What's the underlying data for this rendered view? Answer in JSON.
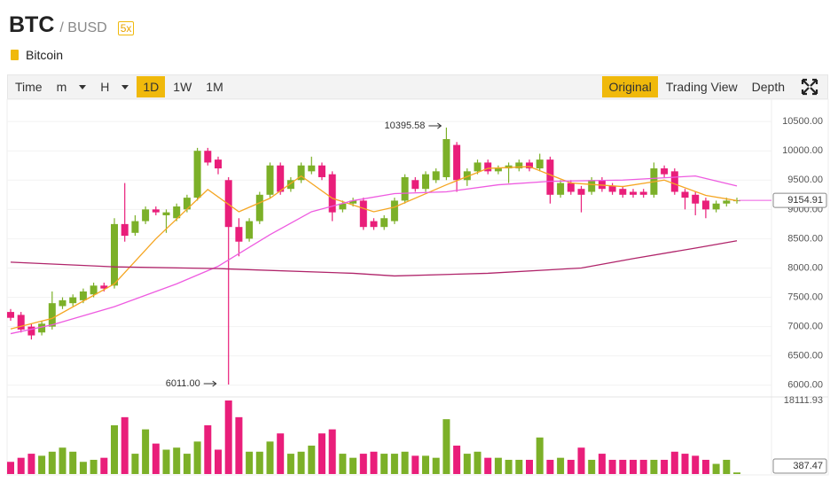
{
  "header": {
    "symbol": "BTC",
    "quote": "/ BUSD",
    "leverage": "5x",
    "name": "Bitcoin"
  },
  "toolbar": {
    "left": [
      "Time",
      "m",
      "H",
      "1D",
      "1W",
      "1M"
    ],
    "dropdowns": [
      "m",
      "H"
    ],
    "active_left": "1D",
    "right": [
      "Original",
      "Trading View",
      "Depth"
    ],
    "active_right": "Original"
  },
  "chart_data": {
    "type": "candlestick",
    "up_color": "#7cb028",
    "down_color": "#e91e7a",
    "open": [
      7250,
      7200,
      7000,
      6900,
      7000,
      7350,
      7400,
      7450,
      7550,
      7700,
      7700,
      8750,
      8600,
      8800,
      9000,
      8900,
      8850,
      9000,
      9200,
      10000,
      9850,
      9500,
      8700,
      8500,
      8800,
      9250,
      9750,
      9350,
      9500,
      9650,
      9750,
      9600,
      9000,
      9100,
      9150,
      8800,
      8700,
      8800,
      9150,
      9500,
      9350,
      9500,
      9550,
      10100,
      9500,
      9650,
      9800,
      9650,
      9700,
      9700,
      9800,
      9700,
      9850,
      9250,
      9450,
      9350,
      9300,
      9500,
      9400,
      9350,
      9300,
      9300,
      9250,
      9700,
      9650,
      9300,
      9250,
      9150,
      9000,
      9100,
      9150
    ],
    "high": [
      7300,
      7250,
      7050,
      7100,
      7600,
      7500,
      7550,
      7650,
      7750,
      7750,
      8850,
      9450,
      8900,
      9050,
      9050,
      9000,
      9100,
      9250,
      10050,
      10050,
      9900,
      9550,
      8850,
      8850,
      9300,
      9800,
      9800,
      9550,
      9800,
      9900,
      9800,
      9650,
      9150,
      9200,
      9200,
      8850,
      8900,
      9200,
      9600,
      9550,
      9650,
      9700,
      10395.58,
      10150,
      9700,
      9850,
      9850,
      9750,
      9800,
      9850,
      9850,
      9950,
      9900,
      9500,
      9500,
      9400,
      9550,
      9550,
      9450,
      9400,
      9350,
      9350,
      9800,
      9750,
      9700,
      9350,
      9300,
      9200,
      9150,
      9200,
      9200
    ],
    "low": [
      7100,
      6900,
      6780,
      6850,
      6950,
      7300,
      7350,
      7400,
      7500,
      7600,
      7650,
      8450,
      8550,
      8750,
      8900,
      8600,
      8800,
      8950,
      9150,
      9750,
      9600,
      6011,
      8200,
      8450,
      8750,
      9200,
      9250,
      9300,
      9450,
      9600,
      9500,
      8800,
      8950,
      9050,
      8650,
      8650,
      8650,
      8750,
      9100,
      9300,
      9300,
      9450,
      9500,
      9300,
      9400,
      9600,
      9600,
      9600,
      9450,
      9650,
      9650,
      9650,
      9100,
      9200,
      9250,
      8950,
      9250,
      9300,
      9250,
      9200,
      9200,
      9200,
      9200,
      9550,
      9250,
      9000,
      8900,
      8850,
      8950,
      9050,
      9100
    ],
    "close": [
      7150,
      6950,
      6850,
      7050,
      7400,
      7450,
      7500,
      7600,
      7700,
      7650,
      8750,
      8550,
      8800,
      9000,
      8950,
      8950,
      9050,
      9200,
      10000,
      9800,
      9700,
      8700,
      8450,
      8800,
      9250,
      9750,
      9300,
      9500,
      9750,
      9750,
      9550,
      8950,
      9100,
      9150,
      8700,
      8700,
      8850,
      9150,
      9550,
      9350,
      9600,
      9650,
      10200,
      9500,
      9650,
      9800,
      9650,
      9700,
      9750,
      9800,
      9700,
      9850,
      9250,
      9450,
      9300,
      9250,
      9500,
      9350,
      9300,
      9250,
      9250,
      9250,
      9700,
      9600,
      9300,
      9200,
      9100,
      9000,
      9100,
      9150,
      9154.91
    ],
    "volume": [
      3000,
      4000,
      5000,
      4500,
      5500,
      6500,
      5500,
      3000,
      3500,
      4000,
      12000,
      14000,
      5000,
      11000,
      7500,
      6000,
      6500,
      5000,
      8000,
      12000,
      6000,
      18111.93,
      14000,
      5500,
      5500,
      8000,
      10000,
      5000,
      5500,
      7000,
      10000,
      11000,
      5000,
      4000,
      5000,
      5500,
      5000,
      5000,
      5500,
      4500,
      4500,
      4000,
      13500,
      7000,
      5000,
      5500,
      4000,
      4000,
      3500,
      3500,
      3500,
      9000,
      3500,
      4000,
      3500,
      6500,
      3500,
      5000,
      3500,
      3500,
      3500,
      3500,
      3500,
      3500,
      5500,
      5000,
      4500,
      3500,
      2500,
      3500,
      387.47
    ],
    "lines": [
      {
        "color": "#f5a623",
        "x": [
          0,
          4,
          10,
          14,
          19,
          22,
          25,
          28,
          31,
          35,
          37,
          42,
          46,
          50,
          54,
          59,
          63,
          67,
          70
        ],
        "values": [
          6960,
          7140,
          7730,
          8500,
          9340,
          8960,
          9190,
          9570,
          9190,
          8960,
          9040,
          9420,
          9700,
          9730,
          9450,
          9390,
          9500,
          9240,
          9150
        ]
      },
      {
        "color": "#ee5be0",
        "x": [
          0,
          4,
          10,
          16,
          20,
          25,
          29,
          33,
          37,
          42,
          47,
          52,
          59,
          66,
          70
        ],
        "values": [
          6880,
          7030,
          7340,
          7730,
          8030,
          8570,
          8960,
          9150,
          9270,
          9300,
          9420,
          9480,
          9500,
          9570,
          9400
        ]
      },
      {
        "color": "#b0246a",
        "x": [
          0,
          10,
          20,
          33,
          37,
          46,
          55,
          60,
          66,
          70
        ],
        "values": [
          8100,
          8020,
          7990,
          7910,
          7865,
          7910,
          8000,
          8160,
          8340,
          8465
        ]
      }
    ],
    "extreme_labels": {
      "high": "10395.58",
      "low": "6011.00"
    },
    "ylim": [
      5800,
      10880
    ],
    "yticks": [
      {
        "value": 6000,
        "label": "6000.00"
      },
      {
        "value": 6500,
        "label": "6500.00"
      },
      {
        "value": 7000,
        "label": "7000.00"
      },
      {
        "value": 7500,
        "label": "7500.00"
      },
      {
        "value": 8000,
        "label": "8000.00"
      },
      {
        "value": 8500,
        "label": "8500.00"
      },
      {
        "value": 9000,
        "label": "9000.00"
      },
      {
        "value": 9500,
        "label": "9500.00"
      },
      {
        "value": 10000,
        "label": "10000.00"
      },
      {
        "value": 10500,
        "label": "10500.00"
      }
    ],
    "volume_lim": [
      0,
      18111.93
    ],
    "grid": true
  }
}
